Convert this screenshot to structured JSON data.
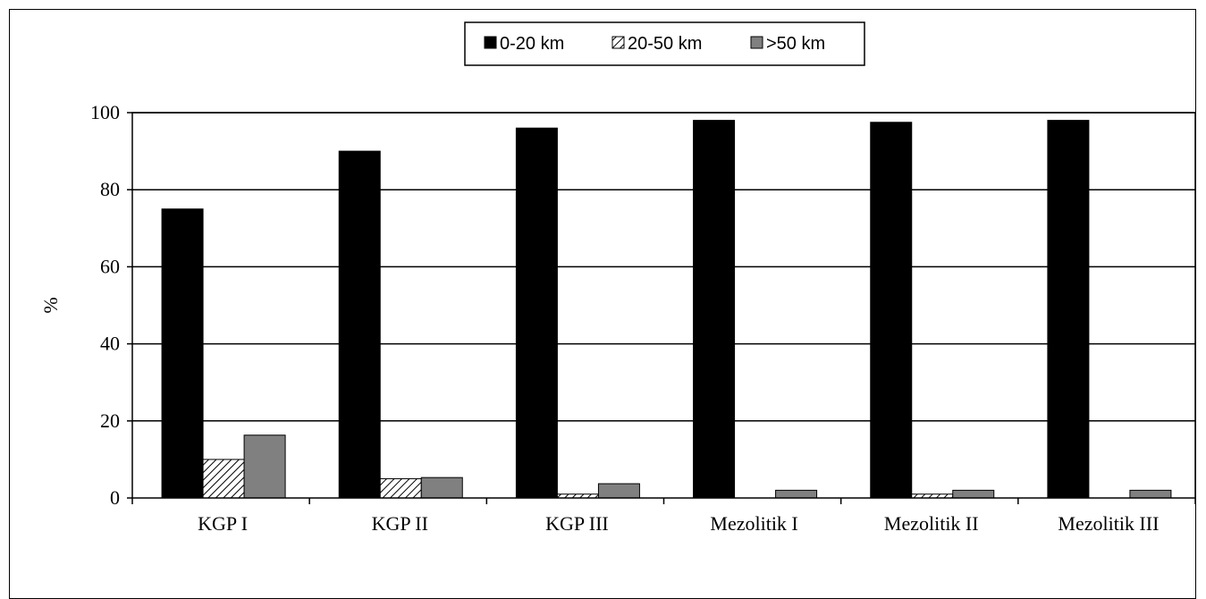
{
  "chart_data": {
    "type": "bar",
    "title": "",
    "xlabel": "",
    "ylabel": "%",
    "ylim": [
      0,
      100
    ],
    "yticks": [
      0,
      20,
      40,
      60,
      80,
      100
    ],
    "grid": true,
    "legend_position": "top-center",
    "categories": [
      "KGP I",
      "KGP II",
      "KGP III",
      "Mezolitik I",
      "Mezolitik II",
      "Mezolitik III"
    ],
    "series": [
      {
        "name": "0-20 km",
        "color": "#000000",
        "pattern": "solid",
        "values": [
          75,
          90,
          96,
          98,
          97.5,
          98
        ]
      },
      {
        "name": "20-50 km",
        "color": "#ffffff",
        "pattern": "hatched",
        "values": [
          10,
          5,
          1,
          0,
          1,
          0
        ]
      },
      {
        "name": ">50 km",
        "color": "#808080",
        "pattern": "solid",
        "values": [
          16.3,
          5.3,
          3.7,
          2,
          2,
          2
        ]
      }
    ]
  }
}
